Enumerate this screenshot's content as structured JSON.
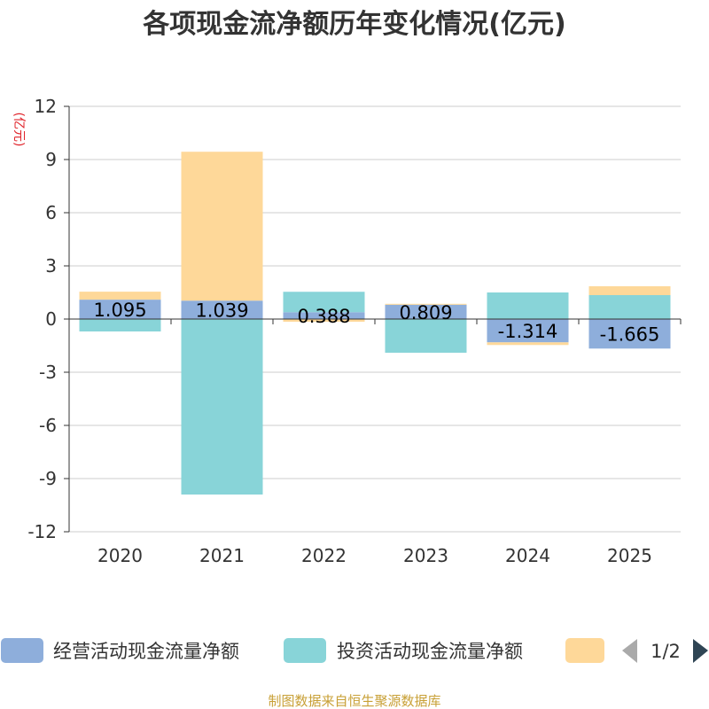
{
  "chart_data": {
    "type": "bar",
    "stacked": true,
    "title": "各项现金流净额历年变化情况(亿元)",
    "ylabel": "(亿元)",
    "xlabel": "",
    "ylim": [
      -12,
      12
    ],
    "yticks": [
      12,
      9,
      6,
      3,
      0,
      -3,
      -6,
      -9,
      -12
    ],
    "categories": [
      "2020",
      "2021",
      "2022",
      "2023",
      "2024",
      "2025"
    ],
    "series": [
      {
        "name": "经营活动现金流量净额",
        "color": "#8eaedb",
        "values": [
          1.095,
          1.039,
          0.388,
          0.809,
          -1.314,
          -1.665
        ],
        "labels": [
          "1.095",
          "1.039",
          "0.388",
          "0.809",
          "-1.314",
          "-1.665"
        ]
      },
      {
        "name": "投资活动现金流量净额",
        "color": "#88d4d8",
        "values": [
          -0.7,
          -9.9,
          1.15,
          -1.9,
          1.5,
          1.35
        ],
        "labels": []
      },
      {
        "name": "",
        "color": "#fed899",
        "values": [
          0.45,
          8.4,
          -0.15,
          0.05,
          -0.15,
          0.5
        ],
        "labels": []
      }
    ],
    "grid": true,
    "legend_position": "bottom"
  },
  "legend": {
    "items": [
      "经营活动现金流量净额",
      "投资活动现金流量净额",
      ""
    ],
    "page": "1/2"
  },
  "footer": {
    "source": "制图数据来自恒生聚源数据库"
  },
  "colors": {
    "axis": "#333333",
    "grid": "#cccccc",
    "pager_active": "#2f4554",
    "pager_inactive": "#aaaaaa"
  }
}
